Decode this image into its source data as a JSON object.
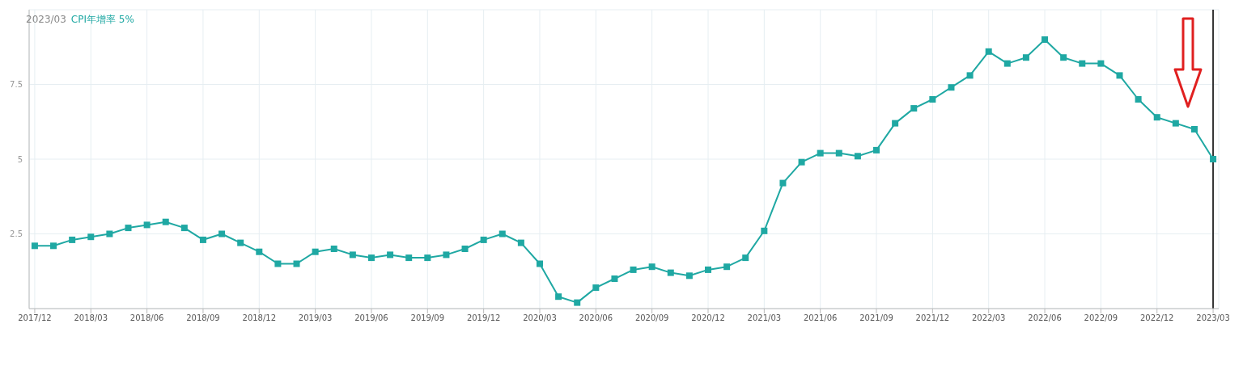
{
  "chart_data": {
    "type": "line",
    "annotations": [
      "2023/03",
      "CPI年增率 5%"
    ],
    "categories": [
      "2017/12",
      null,
      null,
      "2018/03",
      null,
      null,
      "2018/06",
      null,
      null,
      "2018/09",
      null,
      null,
      "2018/12",
      null,
      null,
      "2019/03",
      null,
      null,
      "2019/06",
      null,
      null,
      "2019/09",
      null,
      null,
      "2019/12",
      null,
      null,
      "2020/03",
      null,
      null,
      "2020/06",
      null,
      null,
      "2020/09",
      null,
      null,
      "2020/12",
      null,
      null,
      "2021/03",
      null,
      null,
      "2021/06",
      null,
      null,
      "2021/09",
      null,
      null,
      "2021/12",
      null,
      null,
      "2022/03",
      null,
      null,
      "2022/06",
      null,
      null,
      "2022/09",
      null,
      null,
      "2022/12",
      null,
      null,
      "2023/03"
    ],
    "series": [
      {
        "color": "#1fa8a3",
        "values": [
          2.1,
          2.1,
          2.3,
          2.4,
          2.5,
          2.7,
          2.8,
          2.9,
          2.7,
          2.3,
          2.5,
          2.2,
          1.9,
          1.5,
          1.5,
          1.9,
          2.0,
          1.8,
          1.7,
          1.8,
          1.7,
          1.7,
          1.8,
          2.0,
          2.3,
          2.5,
          2.2,
          1.5,
          0.4,
          0.2,
          0.7,
          1.0,
          1.3,
          1.4,
          1.2,
          1.1,
          1.3,
          1.4,
          1.7,
          2.6,
          4.2,
          4.9,
          5.2,
          5.2,
          5.1,
          5.3,
          6.2,
          6.7,
          7.0,
          7.4,
          7.8,
          8.6,
          8.2,
          8.4,
          9.0,
          8.4,
          8.2,
          8.2,
          7.8,
          7.0,
          6.4,
          6.2,
          6.0,
          5.0
        ]
      }
    ],
    "ylim": [
      0,
      10
    ],
    "yticks": [
      2.5,
      5,
      7.5
    ],
    "grid": true,
    "marker": "square",
    "line_style": "solid",
    "ref_lines": [
      {
        "axis": "x",
        "value": "2023/03",
        "color": "#333333"
      }
    ]
  }
}
